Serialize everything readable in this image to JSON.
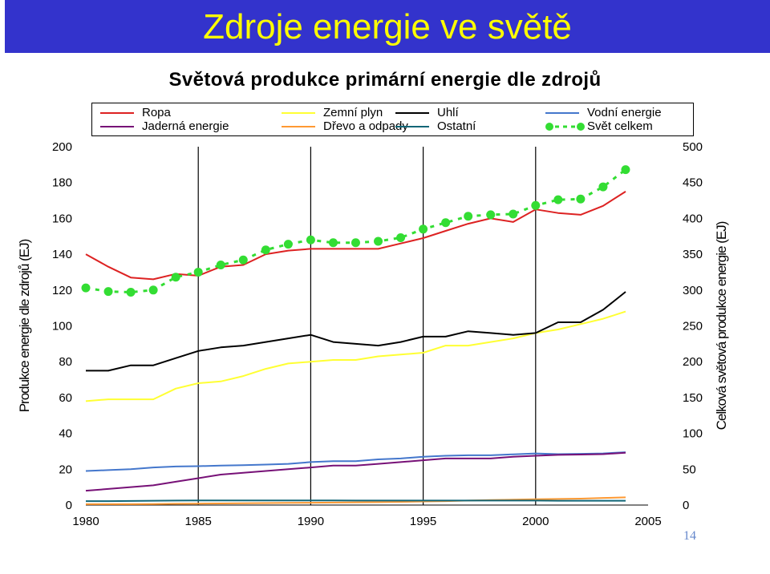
{
  "slide": {
    "title": "Zdroje energie ve světě",
    "page_number": "14"
  },
  "colors": {
    "banner": "#3333cc",
    "title_text": "#ffff00"
  },
  "chart_data": {
    "type": "line",
    "title": "Světová produkce primární energie dle zdrojů",
    "xlabel": "",
    "ylabel": "Produkce energie dle zdrojů (EJ)",
    "y2label": "Celková světová produkce energie (EJ)",
    "xlim": [
      1980,
      2005
    ],
    "ylim": [
      0,
      200
    ],
    "y2lim": [
      0,
      500
    ],
    "x_ticks": [
      "1980",
      "1985",
      "1990",
      "1995",
      "2000",
      "2005"
    ],
    "y_ticks": [
      "0",
      "20",
      "40",
      "60",
      "80",
      "100",
      "120",
      "140",
      "160",
      "180",
      "200"
    ],
    "y2_ticks": [
      "0",
      "50",
      "100",
      "150",
      "200",
      "250",
      "300",
      "350",
      "400",
      "450",
      "500"
    ],
    "grid": "vertical lines at x ticks",
    "legend_position": "top",
    "x": [
      1980,
      1981,
      1982,
      1983,
      1984,
      1985,
      1986,
      1987,
      1988,
      1989,
      1990,
      1991,
      1992,
      1993,
      1994,
      1995,
      1996,
      1997,
      1998,
      1999,
      2000,
      2001,
      2002,
      2003,
      2004
    ],
    "series": [
      {
        "name": "Ropa",
        "color": "#dd2222",
        "axis": "left",
        "values": [
          140,
          133,
          127,
          126,
          129,
          128,
          133,
          134,
          140,
          142,
          143,
          143,
          143,
          143,
          146,
          149,
          153,
          157,
          160,
          158,
          165,
          163,
          162,
          167,
          175
        ]
      },
      {
        "name": "Zemní plyn",
        "color": "#ffff33",
        "axis": "left",
        "values": [
          58,
          59,
          59,
          59,
          65,
          68,
          69,
          72,
          76,
          79,
          80,
          81,
          81,
          83,
          84,
          85,
          89,
          89,
          91,
          93,
          96,
          98,
          101,
          104,
          108
        ]
      },
      {
        "name": "Uhlí",
        "color": "#000000",
        "axis": "left",
        "values": [
          75,
          75,
          78,
          78,
          82,
          86,
          88,
          89,
          91,
          93,
          95,
          91,
          90,
          89,
          91,
          94,
          94,
          97,
          96,
          95,
          96,
          102,
          102,
          109,
          119
        ]
      },
      {
        "name": "Vodní energie",
        "color": "#4477cc",
        "axis": "left",
        "values": [
          19,
          19.5,
          20,
          21,
          21.5,
          21.7,
          22,
          22.3,
          22.6,
          23,
          24,
          24.5,
          24.5,
          25.5,
          26,
          27,
          27.5,
          27.8,
          27.8,
          28.3,
          28.8,
          28.4,
          28.6,
          28.8,
          29.5
        ]
      },
      {
        "name": "Jaderná energie",
        "color": "#771177",
        "axis": "left",
        "values": [
          8,
          9,
          10,
          11,
          13,
          15,
          17,
          18,
          19,
          20,
          21,
          22,
          22,
          23,
          24,
          25,
          26,
          26,
          26,
          27,
          27.5,
          28,
          28.2,
          28.4,
          29.2
        ]
      },
      {
        "name": "Dřevo a odpady",
        "color": "#ff9933",
        "axis": "left",
        "values": [
          0.5,
          0.5,
          0.5,
          0.6,
          0.7,
          0.8,
          0.9,
          1,
          1.1,
          1.2,
          1.3,
          1.4,
          1.5,
          1.6,
          1.8,
          2,
          2.2,
          2.5,
          2.8,
          3,
          3.2,
          3.4,
          3.6,
          4,
          4.3
        ]
      },
      {
        "name": "Ostatní",
        "color": "#116677",
        "axis": "left",
        "values": [
          2.2,
          2.2,
          2.3,
          2.4,
          2.5,
          2.6,
          2.6,
          2.6,
          2.6,
          2.6,
          2.6,
          2.6,
          2.5,
          2.5,
          2.5,
          2.5,
          2.5,
          2.5,
          2.5,
          2.5,
          2.5,
          2.4,
          2.4,
          2.4,
          2.4
        ]
      },
      {
        "name": "Svět celkem",
        "color": "#33dd33",
        "axis": "right",
        "marker": "circle",
        "dashed": true,
        "values": [
          303,
          298,
          297,
          300,
          318,
          325,
          335,
          342,
          356,
          364,
          370,
          366,
          366,
          368,
          373,
          385,
          394,
          403,
          405,
          406,
          418,
          426,
          427,
          444,
          468
        ]
      }
    ]
  }
}
